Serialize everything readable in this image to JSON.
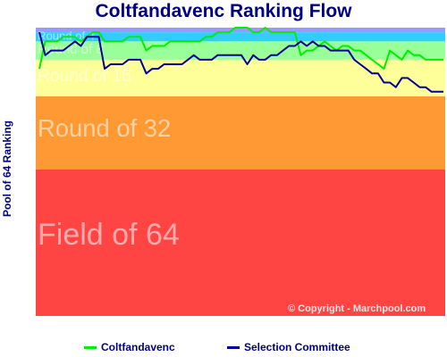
{
  "chart_data": {
    "type": "line",
    "title": "Coltfandavenc Ranking Flow",
    "ylabel": "Pool of 64 Ranking",
    "ylim": [
      1,
      64
    ],
    "y_inverted": true,
    "bands": [
      {
        "label": "",
        "from": 1,
        "to": 2,
        "color": "#9999ff"
      },
      {
        "label": "Round of 4",
        "from": 2,
        "to": 4,
        "color": "#33ccff"
      },
      {
        "label": "Round of 8",
        "from": 4,
        "to": 8,
        "color": "#99ff99"
      },
      {
        "label": "Round of 16",
        "from": 8,
        "to": 16,
        "color": "#ffff99"
      },
      {
        "label": "Round of 32",
        "from": 16,
        "to": 32,
        "color": "#ff9933"
      },
      {
        "label": "Field of 64",
        "from": 32,
        "to": 64,
        "color": "#ff4444"
      }
    ],
    "series": [
      {
        "name": "Coltfandavenc",
        "color": "#00ee00",
        "values": [
          10,
          4,
          4,
          4,
          3,
          3,
          3,
          4,
          3,
          2,
          2,
          4,
          4,
          4,
          4,
          3,
          3,
          3,
          6,
          5,
          5,
          5,
          4,
          4,
          4,
          4,
          4,
          4,
          3,
          3,
          2,
          2,
          2,
          1,
          1,
          1,
          2,
          2,
          1,
          2,
          2,
          2,
          2,
          2,
          7,
          6,
          6,
          5,
          4,
          5,
          6,
          5,
          5,
          6,
          6,
          7,
          8,
          9,
          10,
          6,
          7,
          8,
          6,
          7,
          7,
          8,
          8,
          8,
          8
        ]
      },
      {
        "name": "Selection Committee",
        "color": "#000099",
        "values": [
          2,
          7,
          6,
          6,
          6,
          5,
          4,
          5,
          3,
          3,
          3,
          10,
          9,
          9,
          9,
          8,
          8,
          8,
          11,
          10,
          10,
          9,
          9,
          9,
          9,
          8,
          7,
          8,
          8,
          8,
          7,
          7,
          7,
          7,
          7,
          9,
          7,
          8,
          8,
          7,
          7,
          6,
          5,
          5,
          4,
          5,
          4,
          5,
          5,
          6,
          6,
          6,
          6,
          8,
          9,
          10,
          11,
          11,
          13,
          13,
          14,
          12,
          12,
          13,
          14,
          14,
          15,
          15,
          15
        ]
      }
    ],
    "legend": "bottom",
    "copyright": "© Copyright - Marchpool.com"
  }
}
